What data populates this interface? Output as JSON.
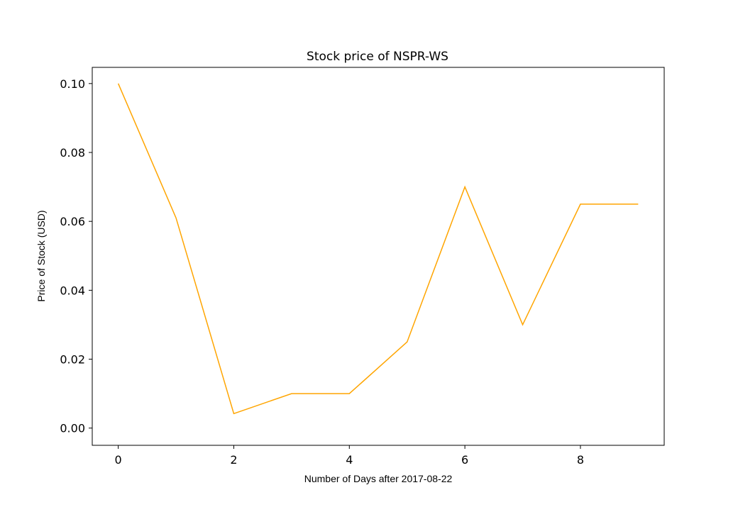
{
  "chart_data": {
    "type": "line",
    "title": "Stock price of NSPR-WS",
    "xlabel": "Number of Days after 2017-08-22",
    "ylabel": "Price of Stock (USD)",
    "xlim": [
      -0.45,
      9.45
    ],
    "ylim": [
      -0.005,
      0.1047
    ],
    "x_ticks": [
      0,
      2,
      4,
      6,
      8
    ],
    "x_tick_labels": [
      "0",
      "2",
      "4",
      "6",
      "8"
    ],
    "y_ticks": [
      0.0,
      0.02,
      0.04,
      0.06,
      0.08,
      0.1
    ],
    "y_tick_labels": [
      "0.00",
      "0.02",
      "0.04",
      "0.06",
      "0.08",
      "0.10"
    ],
    "grid": false,
    "series": [
      {
        "color": "#ffa500",
        "x": [
          0,
          1,
          2,
          3,
          4,
          5,
          6,
          7,
          8,
          9
        ],
        "y": [
          0.1,
          0.061,
          0.0042,
          0.01,
          0.01,
          0.025,
          0.07,
          0.03,
          0.065,
          0.065
        ]
      }
    ]
  }
}
